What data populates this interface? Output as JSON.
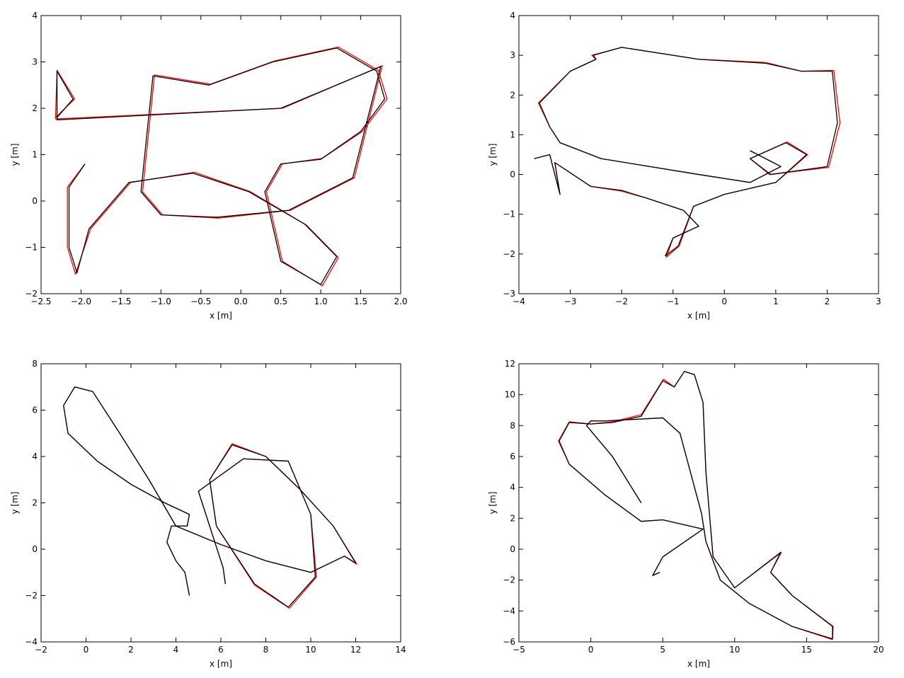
{
  "chart_data": [
    {
      "type": "line",
      "xlabel": "x [m]",
      "ylabel": "y [m]",
      "xlim": [
        -2.5,
        2.0
      ],
      "ylim": [
        -2,
        4
      ],
      "xticks": [
        {
          "value": -2.5,
          "label": "−2.5"
        },
        {
          "value": -2.0,
          "label": "−2.0"
        },
        {
          "value": -1.5,
          "label": "−1.5"
        },
        {
          "value": -1.0,
          "label": "−1.0"
        },
        {
          "value": -0.5,
          "label": "−0.5"
        },
        {
          "value": 0,
          "label": "0.0"
        },
        0.5,
        {
          "value": 1,
          "label": "1.0"
        },
        1.5,
        {
          "value": 2,
          "label": "2.0"
        }
      ],
      "yticks": [
        {
          "value": -2,
          "label": "−2"
        },
        {
          "value": -1,
          "label": "−1"
        },
        0,
        1,
        2,
        3,
        4
      ],
      "series": [
        {
          "color": "#ff0000",
          "x": [
            -1.95,
            -2.17,
            -2.17,
            -2.07,
            -1.88,
            -1.38,
            -0.58,
            0.12,
            0.82,
            1.22,
            1.02,
            0.52,
            0.32,
            0.52,
            1.02,
            1.52,
            1.83,
            1.72,
            1.22,
            0.42,
            -0.38,
            -1.08,
            -1.23,
            -0.98,
            -0.28,
            0.62,
            1.42,
            1.77,
            0.52,
            -2.32,
            -2.3,
            -2.08,
            -2.32
          ],
          "y": [
            0.8,
            0.3,
            -1.0,
            -1.58,
            -0.6,
            0.4,
            0.62,
            0.2,
            -0.52,
            -1.22,
            -1.83,
            -1.3,
            0.2,
            0.8,
            0.92,
            1.5,
            2.2,
            2.82,
            3.32,
            3.02,
            2.52,
            2.72,
            0.2,
            -0.3,
            -0.37,
            -0.2,
            0.5,
            2.92,
            2.0,
            1.77,
            2.82,
            2.2,
            1.8
          ]
        },
        {
          "color": "#000000",
          "x": [
            -1.95,
            -2.15,
            -2.15,
            -2.05,
            -1.9,
            -1.4,
            -0.6,
            0.1,
            0.8,
            1.2,
            1.0,
            0.5,
            0.3,
            0.5,
            1.0,
            1.5,
            1.8,
            1.7,
            1.2,
            0.4,
            -0.4,
            -1.1,
            -1.25,
            -1.0,
            -0.3,
            0.6,
            1.4,
            1.75,
            0.5,
            -2.3,
            -2.3,
            -2.1,
            -2.3
          ],
          "y": [
            0.8,
            0.3,
            -1.0,
            -1.55,
            -0.6,
            0.4,
            0.6,
            0.2,
            -0.5,
            -1.2,
            -1.8,
            -1.3,
            0.2,
            0.8,
            0.9,
            1.5,
            2.2,
            2.8,
            3.3,
            3.0,
            2.5,
            2.7,
            0.2,
            -0.3,
            -0.35,
            -0.2,
            0.5,
            2.9,
            2.0,
            1.75,
            2.8,
            2.2,
            1.8
          ]
        }
      ]
    },
    {
      "type": "line",
      "xlabel": "x [m]",
      "ylabel": "y [m]",
      "xlim": [
        -4,
        3
      ],
      "ylim": [
        -3,
        4
      ],
      "xticks": [
        {
          "value": -4,
          "label": "−4"
        },
        {
          "value": -3,
          "label": "−3"
        },
        {
          "value": -2,
          "label": "−2"
        },
        {
          "value": -1,
          "label": "−1"
        },
        0,
        1,
        2,
        3
      ],
      "yticks": [
        {
          "value": -3,
          "label": "−3"
        },
        {
          "value": -2,
          "label": "−2"
        },
        {
          "value": -1,
          "label": "−1"
        },
        0,
        1,
        2,
        3,
        4
      ],
      "series": [
        {
          "color": "#ff0000",
          "x": [
            -3.7,
            -3.4,
            -3.2,
            -3.3,
            -2.6,
            -2.0,
            -1.5,
            -0.8,
            -0.5,
            -1.0,
            -1.13,
            -0.88,
            -0.6,
            0.0,
            1.0,
            1.62,
            1.22,
            0.5,
            0.88,
            2.03,
            2.25,
            2.13,
            1.5,
            0.8,
            -0.5,
            -2.0,
            -2.58,
            -2.5,
            -3.0,
            -3.62,
            -3.4,
            -3.2,
            -2.4,
            -0.5,
            0.5,
            1.1,
            0.5
          ],
          "y": [
            0.4,
            0.5,
            -0.5,
            0.3,
            -0.3,
            -0.42,
            -0.6,
            -0.9,
            -1.3,
            -1.6,
            -2.08,
            -1.8,
            -0.8,
            -0.5,
            -0.2,
            0.5,
            0.82,
            0.4,
            0.0,
            0.18,
            1.3,
            2.62,
            2.6,
            2.82,
            2.9,
            3.2,
            3.0,
            2.9,
            2.6,
            1.8,
            1.2,
            0.8,
            0.4,
            0.0,
            -0.2,
            0.2,
            0.6
          ]
        },
        {
          "color": "#000000",
          "x": [
            -3.7,
            -3.4,
            -3.2,
            -3.3,
            -2.6,
            -2.0,
            -1.5,
            -0.8,
            -0.5,
            -1.0,
            -1.15,
            -0.9,
            -0.6,
            0.0,
            1.0,
            1.6,
            1.2,
            0.5,
            0.9,
            2.0,
            2.2,
            2.1,
            1.5,
            0.8,
            -0.5,
            -2.0,
            -2.55,
            -2.5,
            -3.0,
            -3.6,
            -3.4,
            -3.2,
            -2.4,
            -0.5,
            0.5,
            1.1,
            0.5
          ],
          "y": [
            0.4,
            0.5,
            -0.5,
            0.3,
            -0.3,
            -0.4,
            -0.6,
            -0.9,
            -1.3,
            -1.6,
            -2.05,
            -1.8,
            -0.8,
            -0.5,
            -0.2,
            0.5,
            0.8,
            0.4,
            0.0,
            0.2,
            1.3,
            2.6,
            2.6,
            2.8,
            2.9,
            3.2,
            3.0,
            2.9,
            2.6,
            1.8,
            1.2,
            0.8,
            0.4,
            0.0,
            -0.2,
            0.2,
            0.6
          ]
        }
      ]
    },
    {
      "type": "line",
      "xlabel": "x [m]",
      "ylabel": "y [m]",
      "xlim": [
        -2,
        14
      ],
      "ylim": [
        -4,
        8
      ],
      "xticks": [
        {
          "value": -2,
          "label": "−2"
        },
        0,
        2,
        4,
        6,
        8,
        10,
        12,
        14
      ],
      "yticks": [
        {
          "value": -4,
          "label": "−4"
        },
        {
          "value": -2,
          "label": "−2"
        },
        0,
        2,
        4,
        6,
        8
      ],
      "series": [
        {
          "color": "#ff0000",
          "x": [
            4.6,
            4.4,
            4.0,
            3.6,
            3.8,
            4.5,
            4.6,
            3.5,
            2.0,
            0.5,
            -0.8,
            -1.0,
            -0.5,
            0.3,
            1.5,
            2.8,
            4.0,
            6.0,
            8.0,
            10.0,
            11.5,
            12.05,
            11.0,
            9.5,
            8.0,
            6.5,
            5.5,
            5.8,
            7.5,
            9.05,
            10.25,
            10.0,
            9.0,
            7.0,
            5.0,
            6.1,
            6.2
          ],
          "y": [
            -2.0,
            -1.0,
            -0.5,
            0.3,
            1.0,
            1.0,
            1.5,
            2.0,
            2.8,
            3.8,
            5.0,
            6.2,
            7.0,
            6.8,
            5.0,
            3.0,
            1.0,
            0.2,
            -0.5,
            -1.0,
            -0.3,
            -0.65,
            1.0,
            2.6,
            4.0,
            4.55,
            3.0,
            1.0,
            -1.55,
            -2.55,
            -1.2,
            1.5,
            3.8,
            3.9,
            2.5,
            -0.8,
            -1.5
          ]
        },
        {
          "color": "#000000",
          "x": [
            4.6,
            4.4,
            4.0,
            3.6,
            3.8,
            4.5,
            4.6,
            3.5,
            2.0,
            0.5,
            -0.8,
            -1.0,
            -0.5,
            0.3,
            1.5,
            2.8,
            4.0,
            6.0,
            8.0,
            10.0,
            11.5,
            12.0,
            11.0,
            9.5,
            8.0,
            6.5,
            5.5,
            5.8,
            7.5,
            9.0,
            10.2,
            10.0,
            9.0,
            7.0,
            5.0,
            6.1,
            6.2
          ],
          "y": [
            -2.0,
            -1.0,
            -0.5,
            0.3,
            1.0,
            1.0,
            1.5,
            2.0,
            2.8,
            3.8,
            5.0,
            6.2,
            7.0,
            6.8,
            5.0,
            3.0,
            1.0,
            0.2,
            -0.5,
            -1.0,
            -0.3,
            -0.6,
            1.0,
            2.6,
            4.0,
            4.5,
            3.0,
            1.0,
            -1.5,
            -2.5,
            -1.2,
            1.5,
            3.8,
            3.9,
            2.5,
            -0.8,
            -1.5
          ]
        }
      ]
    },
    {
      "type": "line",
      "xlabel": "x [m]",
      "ylabel": "y [m]",
      "xlim": [
        -5,
        20
      ],
      "ylim": [
        -6,
        12
      ],
      "xticks": [
        {
          "value": -5,
          "label": "−5"
        },
        0,
        5,
        10,
        15,
        20
      ],
      "yticks": [
        {
          "value": -6,
          "label": "−6"
        },
        {
          "value": -4,
          "label": "−4"
        },
        {
          "value": -2,
          "label": "−2"
        },
        0,
        2,
        4,
        6,
        8,
        10,
        12
      ],
      "series": [
        {
          "color": "#ff0000",
          "x": [
            4.8,
            4.3,
            5.0,
            7.8,
            5.0,
            3.5,
            1.0,
            -1.5,
            -2.25,
            -1.5,
            0.0,
            1.5,
            3.5,
            5.05,
            5.8,
            6.5,
            7.2,
            7.8,
            8.0,
            8.5,
            10.0,
            13.25,
            12.5,
            14.0,
            16.85,
            16.8,
            14.0,
            11.0,
            9.0,
            8.0,
            7.7,
            6.2,
            5.0,
            3.0,
            1.0,
            0.0,
            -0.3,
            1.5,
            3.5
          ],
          "y": [
            -1.5,
            -1.7,
            -0.5,
            1.3,
            1.9,
            1.8,
            3.5,
            5.5,
            7.0,
            8.25,
            8.1,
            8.25,
            8.7,
            11.0,
            10.5,
            11.5,
            11.3,
            9.5,
            5.0,
            -0.5,
            -2.5,
            -0.2,
            -1.5,
            -3.0,
            -5.0,
            -5.85,
            -5.0,
            -3.5,
            -2.0,
            0.5,
            2.3,
            7.5,
            8.5,
            8.4,
            8.3,
            8.3,
            8.0,
            6.0,
            3.0
          ]
        },
        {
          "color": "#000000",
          "x": [
            4.8,
            4.3,
            5.0,
            7.8,
            5.0,
            3.5,
            1.0,
            -1.5,
            -2.2,
            -1.5,
            0.0,
            1.5,
            3.5,
            5.0,
            5.8,
            6.5,
            7.2,
            7.8,
            8.0,
            8.5,
            10.0,
            13.2,
            12.5,
            14.0,
            16.8,
            16.8,
            14.0,
            11.0,
            9.0,
            8.0,
            7.7,
            6.2,
            5.0,
            3.0,
            1.0,
            0.0,
            -0.3,
            1.5,
            3.5
          ],
          "y": [
            -1.5,
            -1.7,
            -0.5,
            1.3,
            1.9,
            1.8,
            3.5,
            5.5,
            7.0,
            8.2,
            8.1,
            8.2,
            8.6,
            10.9,
            10.5,
            11.5,
            11.3,
            9.5,
            5.0,
            -0.5,
            -2.5,
            -0.2,
            -1.5,
            -3.0,
            -5.0,
            -5.8,
            -5.0,
            -3.5,
            -2.0,
            0.5,
            2.3,
            7.5,
            8.5,
            8.4,
            8.3,
            8.3,
            8.0,
            6.0,
            3.0
          ]
        }
      ]
    }
  ]
}
